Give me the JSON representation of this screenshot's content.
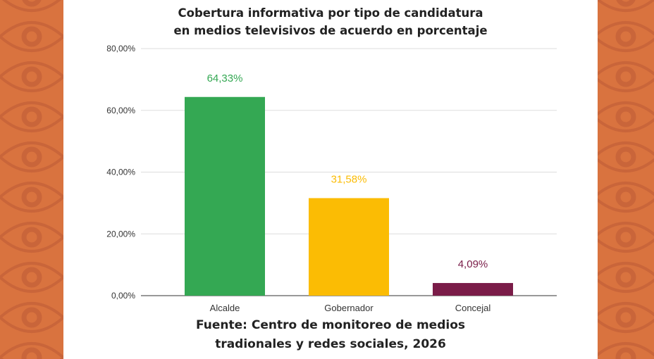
{
  "chart_data": {
    "type": "bar",
    "title": "Cobertura informativa por tipo de candidatura en medios televisivos de acuerdo  en porcentaje",
    "title_lines": [
      "Cobertura informativa por tipo de candidatura",
      "en medios televisivos de acuerdo  en porcentaje"
    ],
    "categories": [
      "Alcalde",
      "Gobernador",
      "Concejal"
    ],
    "values": [
      64.33,
      31.58,
      4.09
    ],
    "data_labels": [
      "64,33%",
      "31,58%",
      "4,09%"
    ],
    "colors": [
      "#34a853",
      "#fbbc04",
      "#7a1c48"
    ],
    "ylim": [
      0,
      80
    ],
    "yticks": [
      0,
      20,
      40,
      60,
      80
    ],
    "ytick_labels": [
      "0,00%",
      "20,00%",
      "40,00%",
      "60,00%",
      "80,00%"
    ],
    "grid": true,
    "xlabel": "",
    "ylabel": ""
  },
  "source_lines": [
    "Fuente: Centro de monitoreo de medios",
    "tradionales y redes sociales, 2026"
  ],
  "colors": {
    "background": "#d9733f",
    "pattern": "#c9653a"
  }
}
